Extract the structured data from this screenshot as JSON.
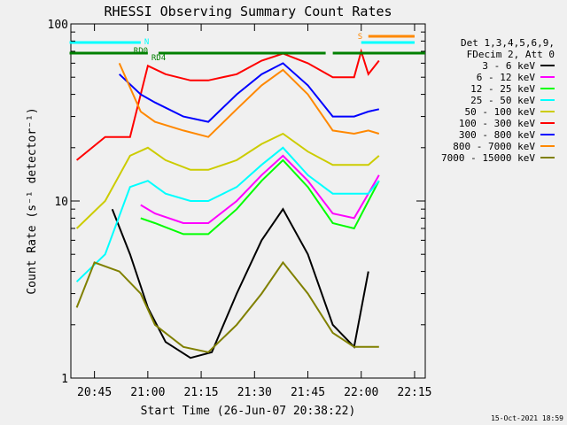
{
  "chart_data": {
    "type": "line",
    "title": "RHESSI Observing Summary Count Rates",
    "xlabel": "Start Time (26-Jun-07 20:38:22)",
    "ylabel": "Count Rate (s⁻¹ detector⁻¹)",
    "y_scale": "log",
    "ylim": [
      1,
      100
    ],
    "xlim": [
      "20:38:22",
      "22:18:00"
    ],
    "x_ticks": [
      "20:45",
      "21:00",
      "21:15",
      "21:30",
      "21:45",
      "22:00",
      "22:15"
    ],
    "y_ticks": [
      "1",
      "10",
      "100"
    ],
    "legend_placement": "right",
    "legend_header": [
      "Det 1,3,4,5,6,9,",
      "FDecim 2, Att 0"
    ],
    "series": [
      {
        "name": "3 - 6 keV",
        "color": "#000000",
        "x": [
          "20:40",
          "20:50",
          "20:55",
          "21:00",
          "21:05",
          "21:12",
          "21:18",
          "21:25",
          "21:32",
          "21:38",
          "21:45",
          "21:52",
          "21:58",
          "22:02"
        ],
        "values": [
          null,
          9,
          5,
          2.5,
          1.6,
          1.3,
          1.4,
          3,
          6,
          9,
          5,
          2,
          1.5,
          4
        ]
      },
      {
        "name": "6 - 12 keV",
        "color": "#ff00ff",
        "x": [
          "20:58",
          "21:02",
          "21:10",
          "21:17",
          "21:25",
          "21:32",
          "21:38",
          "21:45",
          "21:52",
          "21:58",
          "22:02",
          "22:05"
        ],
        "values": [
          9.5,
          8.5,
          7.5,
          7.5,
          10,
          14,
          18,
          13,
          8.5,
          8,
          11,
          14
        ]
      },
      {
        "name": "12 - 25 keV",
        "color": "#00ff00",
        "x": [
          "20:58",
          "21:02",
          "21:10",
          "21:17",
          "21:25",
          "21:32",
          "21:38",
          "21:45",
          "21:52",
          "21:58",
          "22:02",
          "22:05"
        ],
        "values": [
          8,
          7.5,
          6.5,
          6.5,
          9,
          13,
          17,
          12,
          7.5,
          7,
          10,
          13
        ]
      },
      {
        "name": "25 - 50 keV",
        "color": "#00ffff",
        "x": [
          "20:40",
          "20:48",
          "20:55",
          "21:00",
          "21:05",
          "21:12",
          "21:17",
          "21:25",
          "21:32",
          "21:38",
          "21:45",
          "21:52",
          "21:58",
          "22:02",
          "22:05"
        ],
        "values": [
          3.5,
          5,
          12,
          13,
          11,
          10,
          10,
          12,
          16,
          20,
          14,
          11,
          11,
          11,
          13
        ]
      },
      {
        "name": "50 - 100 keV",
        "color": "#cccc00",
        "x": [
          "20:40",
          "20:48",
          "20:55",
          "21:00",
          "21:05",
          "21:12",
          "21:17",
          "21:25",
          "21:32",
          "21:38",
          "21:45",
          "21:52",
          "21:58",
          "22:02",
          "22:05"
        ],
        "values": [
          7,
          10,
          18,
          20,
          17,
          15,
          15,
          17,
          21,
          24,
          19,
          16,
          16,
          16,
          18
        ]
      },
      {
        "name": "100 - 300 keV",
        "color": "#ff0000",
        "x": [
          "20:40",
          "20:48",
          "20:55",
          "21:00",
          "21:05",
          "21:12",
          "21:17",
          "21:25",
          "21:32",
          "21:38",
          "21:45",
          "21:52",
          "21:58",
          "22:00",
          "22:02",
          "22:05"
        ],
        "values": [
          17,
          23,
          23,
          58,
          52,
          48,
          48,
          52,
          62,
          68,
          60,
          50,
          50,
          70,
          52,
          62
        ]
      },
      {
        "name": "300 - 800 keV",
        "color": "#0000ff",
        "x": [
          "20:52",
          "20:58",
          "21:02",
          "21:10",
          "21:17",
          "21:25",
          "21:32",
          "21:38",
          "21:45",
          "21:52",
          "21:58",
          "22:02",
          "22:05"
        ],
        "values": [
          52,
          40,
          36,
          30,
          28,
          40,
          52,
          60,
          45,
          30,
          30,
          32,
          33
        ]
      },
      {
        "name": "800 - 7000 keV",
        "color": "#ff8800",
        "x": [
          "20:52",
          "20:58",
          "21:02",
          "21:10",
          "21:17",
          "21:25",
          "21:32",
          "21:38",
          "21:45",
          "21:52",
          "21:58",
          "22:02",
          "22:05"
        ],
        "values": [
          60,
          32,
          28,
          25,
          23,
          33,
          45,
          55,
          40,
          25,
          24,
          25,
          24
        ]
      },
      {
        "name": "7000 - 15000 keV",
        "color": "#808000",
        "x": [
          "20:40",
          "20:45",
          "20:52",
          "20:58",
          "21:02",
          "21:10",
          "21:17",
          "21:25",
          "21:32",
          "21:38",
          "21:45",
          "21:52",
          "21:58",
          "22:02",
          "22:05"
        ],
        "values": [
          2.5,
          4.5,
          4,
          3,
          2,
          1.5,
          1.4,
          2,
          3,
          4.5,
          3,
          1.8,
          1.5,
          1.5,
          1.5
        ]
      }
    ],
    "flag_bars": [
      {
        "label": "",
        "color": "#00ffff",
        "segments": [
          [
            "20:38",
            "20:58"
          ],
          [
            "22:00",
            "22:15"
          ]
        ]
      },
      {
        "label": "RD0",
        "color": "#008000",
        "segments": [
          [
            "20:38",
            "21:00"
          ],
          [
            "21:03",
            "21:50"
          ],
          [
            "21:52",
            "22:18"
          ]
        ]
      },
      {
        "label": "RD4",
        "color": "#008000",
        "segments": []
      },
      {
        "label": "N",
        "color": "#00ffff",
        "segments": []
      },
      {
        "label": "S",
        "color": "#ff8800",
        "segments": [
          [
            "22:02",
            "22:15"
          ]
        ]
      }
    ],
    "timestamp": "15-Oct-2021 18:59"
  }
}
